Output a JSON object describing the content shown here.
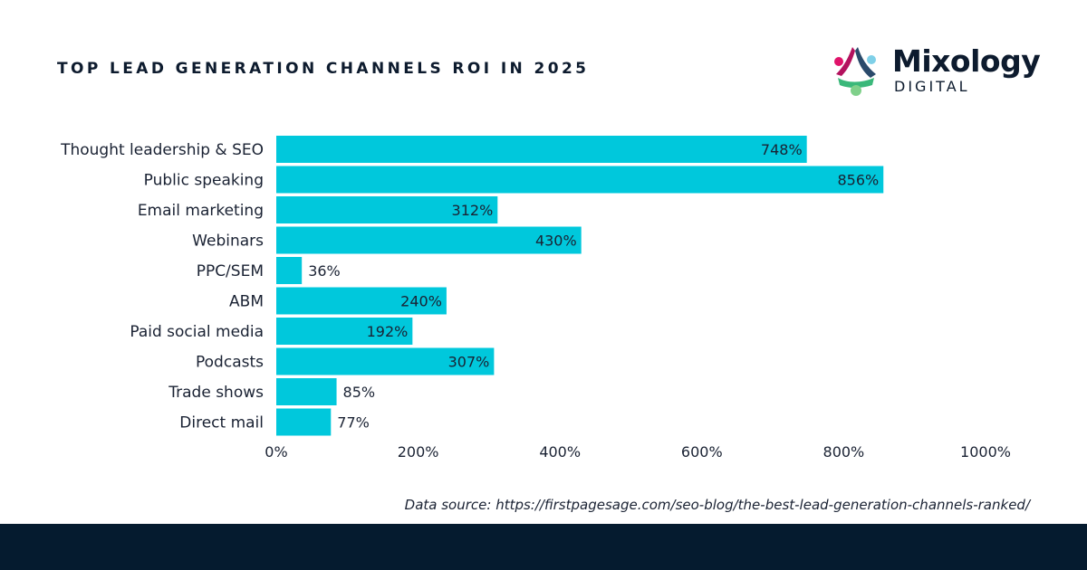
{
  "header": {
    "title": "TOP LEAD GENERATION CHANNELS ROI IN 2025"
  },
  "logo": {
    "word": "Mixology",
    "sub": "DIGITAL"
  },
  "colors": {
    "bar": "#00c8dc",
    "footer": "#051b2f",
    "text": "#1a2233"
  },
  "source": {
    "text": "Data source:  https://firstpagesage.com/seo-blog/the-best-lead-generation-channels-ranked/"
  },
  "chart_data": {
    "type": "bar",
    "orientation": "horizontal",
    "title": "TOP LEAD GENERATION CHANNELS ROI IN 2025",
    "categories": [
      "Thought leadership & SEO",
      "Public speaking",
      "Email marketing",
      "Webinars",
      "PPC/SEM",
      "ABM",
      "Paid social media",
      "Podcasts",
      "Trade shows",
      "Direct mail"
    ],
    "values": [
      748,
      856,
      312,
      430,
      36,
      240,
      192,
      307,
      85,
      77
    ],
    "value_labels": [
      "748%",
      "856%",
      "312%",
      "430%",
      "36%",
      "240%",
      "192%",
      "307%",
      "85%",
      "77%"
    ],
    "xlim": [
      0,
      1000
    ],
    "xticks": [
      0,
      200,
      400,
      600,
      800,
      1000
    ],
    "xtick_labels": [
      "0%",
      "200%",
      "400%",
      "600%",
      "800%",
      "1000%"
    ],
    "xlabel": "",
    "ylabel": "",
    "grid": false
  }
}
